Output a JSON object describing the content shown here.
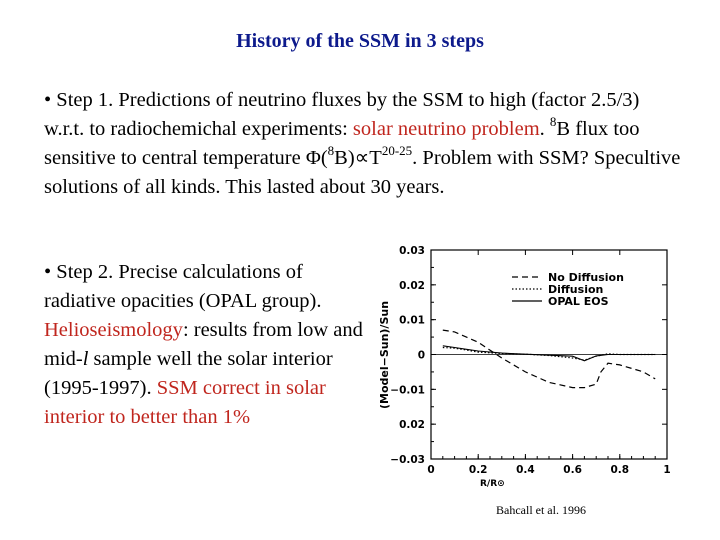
{
  "slide": {
    "title": "History of the SSM in 3 steps",
    "step1": {
      "a": "• Step 1. Predictions of neutrino fluxes by the SSM to high (factor 2.5/3) w.r.t. to radiochemichal experiments: ",
      "b": "solar neutrino problem",
      "c": ".  ",
      "d": "8",
      "e": "B flux too sensitive to central temperature Φ(",
      "f": "8",
      "g": "B)∝T",
      "h": "20-25",
      "i": ". Problem with SSM? Specultive solutions of all kinds. This lasted about 30 years."
    },
    "step2": {
      "a": "• Step 2. Precise calculations of radiative opacities (OPAL group). ",
      "b": "Helioseismology",
      "c": ": results from low and mid-",
      "d": "l",
      "e": " sample well the solar interior (1995-1997). ",
      "f": "SSM correct in solar interior to better than 1%"
    },
    "credit": "Bahcall et al. 1996"
  },
  "chart_data": {
    "type": "line",
    "xlabel": "R/R⊙",
    "ylabel": "(Model−Sun)/Sun",
    "xlim": [
      0,
      1
    ],
    "ylim": [
      -0.03,
      0.03
    ],
    "x_ticks": [
      "0",
      "0.2",
      "0.4",
      "0.6",
      "0.8",
      "1"
    ],
    "y_ticks": [
      "0.03",
      "0.02",
      "0.01",
      "0",
      "−0.01",
      "0.02",
      "−0.03"
    ],
    "legend_position": "top-right",
    "series": [
      {
        "name": "No Diffusion",
        "style": "dashed",
        "x": [
          0.05,
          0.1,
          0.15,
          0.2,
          0.3,
          0.4,
          0.5,
          0.6,
          0.65,
          0.7,
          0.72,
          0.75,
          0.8,
          0.85,
          0.9,
          0.95
        ],
        "y": [
          0.007,
          0.0065,
          0.005,
          0.0035,
          -0.001,
          -0.005,
          -0.008,
          -0.0095,
          -0.0095,
          -0.0085,
          -0.005,
          -0.0025,
          -0.003,
          -0.004,
          -0.005,
          -0.007
        ]
      },
      {
        "name": "Diffusion",
        "style": "dotted",
        "x": [
          0.05,
          0.1,
          0.15,
          0.2,
          0.3,
          0.4,
          0.5,
          0.6,
          0.65,
          0.7,
          0.75,
          0.8,
          0.85,
          0.9,
          0.95
        ],
        "y": [
          0.002,
          0.0018,
          0.0013,
          0.0007,
          0.0003,
          0.0001,
          -0.0003,
          -0.001,
          -0.0016,
          -0.0005,
          0.0002,
          0,
          0,
          0,
          0
        ]
      },
      {
        "name": "OPAL EOS",
        "style": "solid",
        "x": [
          0.05,
          0.1,
          0.15,
          0.2,
          0.3,
          0.4,
          0.5,
          0.6,
          0.65,
          0.7,
          0.75,
          0.8,
          0.85,
          0.9,
          0.95
        ],
        "y": [
          0.0025,
          0.002,
          0.0015,
          0.001,
          0.0004,
          0.0001,
          -0.0002,
          -0.0005,
          -0.0018,
          -0.0004,
          0,
          0,
          0,
          0,
          0
        ]
      }
    ]
  }
}
